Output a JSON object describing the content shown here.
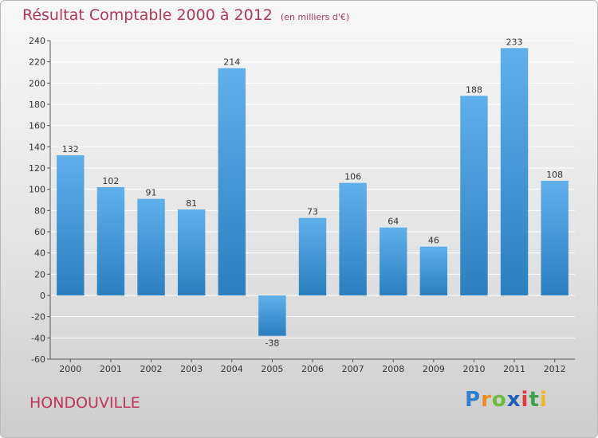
{
  "header": {
    "title": "Résultat Comptable 2000 à 2012",
    "subtitle": "(en milliers d'€)"
  },
  "footer": {
    "commune": "HONDOUVILLE",
    "logo": [
      "P",
      "r",
      "o",
      "x",
      "i",
      "t",
      "i"
    ]
  },
  "colors": {
    "bar_top": "#5fb0ea",
    "bar_bottom": "#2a7fc0",
    "grid": "#ffffff",
    "title": "#b0365a"
  },
  "chart_data": {
    "type": "bar",
    "title": "Résultat Comptable 2000 à 2012",
    "subtitle": "(en milliers d'€)",
    "xlabel": "",
    "ylabel": "",
    "categories": [
      "2000",
      "2001",
      "2002",
      "2003",
      "2004",
      "2005",
      "2006",
      "2007",
      "2008",
      "2009",
      "2010",
      "2011",
      "2012"
    ],
    "values": [
      132,
      102,
      91,
      81,
      214,
      -38,
      73,
      106,
      64,
      46,
      188,
      233,
      108
    ],
    "ylim": [
      -60,
      240
    ],
    "yticks": [
      -60,
      -40,
      -20,
      0,
      20,
      40,
      60,
      80,
      100,
      120,
      140,
      160,
      180,
      200,
      220,
      240
    ],
    "grid": true,
    "legend": "none"
  }
}
